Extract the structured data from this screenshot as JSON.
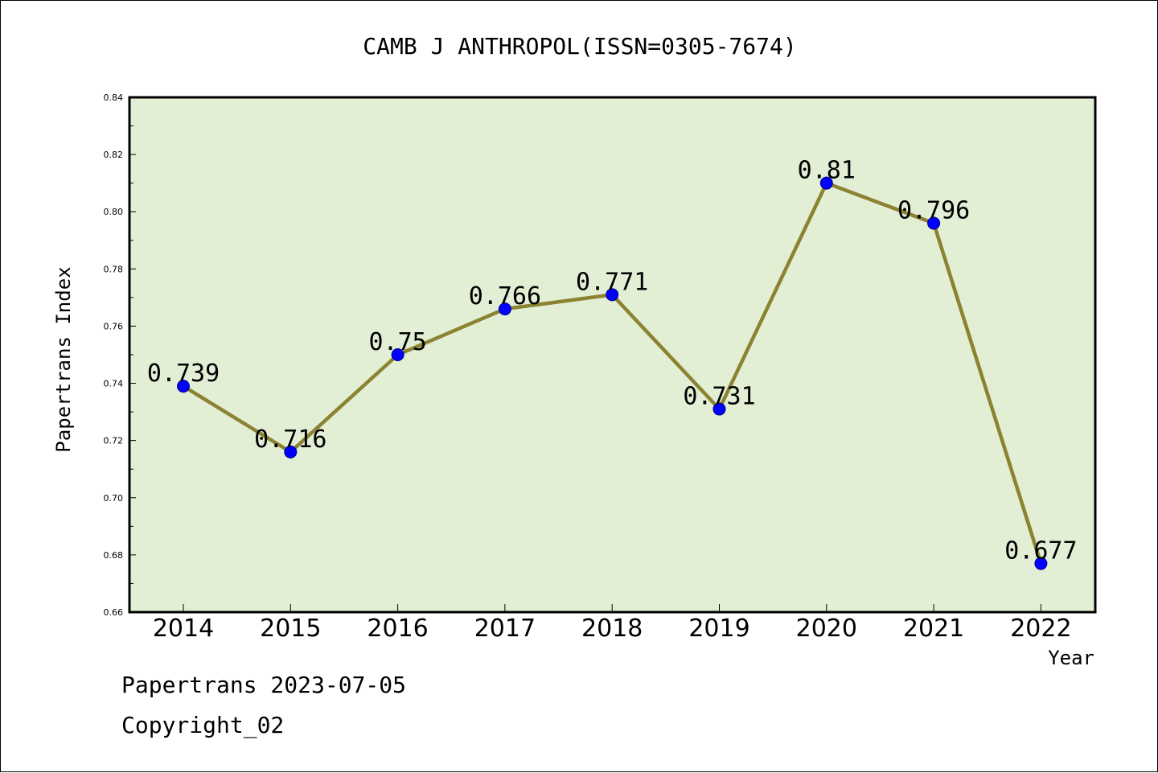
{
  "chart_data": {
    "type": "line",
    "title": "CAMB J ANTHROPOL(ISSN=0305-7674)",
    "xlabel": "Year",
    "ylabel": "Papertrans Index",
    "categories": [
      "2014",
      "2015",
      "2016",
      "2017",
      "2018",
      "2019",
      "2020",
      "2021",
      "2022"
    ],
    "series": [
      {
        "values": [
          0.739,
          0.716,
          0.75,
          0.766,
          0.771,
          0.731,
          0.81,
          0.796,
          0.677
        ]
      }
    ],
    "data_labels": [
      "0.739",
      "0.716",
      "0.75",
      "0.766",
      "0.771",
      "0.731",
      "0.81",
      "0.796",
      "0.677"
    ],
    "ylim": [
      0.66,
      0.84
    ],
    "yticks": [
      "0.66",
      "0.68",
      "0.70",
      "0.72",
      "0.74",
      "0.76",
      "0.78",
      "0.80",
      "0.82",
      "0.84"
    ],
    "grid": false,
    "legend": "none",
    "colors": {
      "plot_background": "#e2efd5",
      "line": "#8b8232",
      "marker": "#0000ff"
    }
  },
  "footer": {
    "date_line": "Papertrans 2023-07-05",
    "copyright_line": "Copyright_02"
  }
}
